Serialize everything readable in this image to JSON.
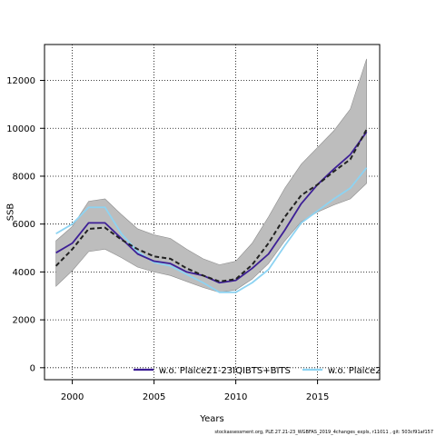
{
  "chart_data": {
    "type": "line",
    "title": "",
    "xlabel": "Years",
    "ylabel": "SSB",
    "xlim": [
      1998.3,
      2018.8
    ],
    "ylim": [
      -500,
      13500
    ],
    "xticks": [
      2000,
      2005,
      2010,
      2015
    ],
    "yticks": [
      0,
      2000,
      4000,
      6000,
      8000,
      10000,
      12000
    ],
    "grid": "dotted",
    "legend_position": "bottom",
    "x": [
      1999,
      2000,
      2001,
      2002,
      2003,
      2004,
      2005,
      2006,
      2007,
      2008,
      2009,
      2010,
      2011,
      2012,
      2013,
      2014,
      2015,
      2016,
      2017,
      2018
    ],
    "band": {
      "upper": [
        5300,
        5900,
        6950,
        7050,
        6400,
        5800,
        5550,
        5400,
        4950,
        4550,
        4300,
        4450,
        5200,
        6300,
        7500,
        8500,
        9200,
        9900,
        10800,
        12900
      ],
      "lower": [
        3400,
        4050,
        4850,
        4950,
        4600,
        4200,
        4000,
        3850,
        3600,
        3350,
        3150,
        3250,
        3700,
        4350,
        5300,
        6100,
        6500,
        6800,
        7050,
        7700
      ]
    },
    "series": [
      {
        "name": "",
        "color": "#222222",
        "style": "dashed",
        "values": [
          4250,
          4950,
          5800,
          5850,
          5350,
          4950,
          4650,
          4550,
          4150,
          3850,
          3600,
          3700,
          4300,
          5200,
          6300,
          7200,
          7650,
          8200,
          8700,
          9950
        ]
      },
      {
        "name": "w.o. Plaice21-23IQIBTS+BITS",
        "color": "#3d1f96",
        "style": "solid",
        "values": [
          4800,
          5200,
          6050,
          6050,
          5400,
          4750,
          4450,
          4350,
          4000,
          3850,
          3550,
          3650,
          4150,
          4750,
          5750,
          6850,
          7650,
          8300,
          8900,
          9850
        ]
      },
      {
        "name": "w.o. Plaice2",
        "color": "#8dd3f2",
        "style": "solid",
        "values": [
          5600,
          6000,
          6700,
          6700,
          5600,
          4850,
          4400,
          4250,
          3900,
          3550,
          3150,
          3150,
          3550,
          4100,
          5100,
          6050,
          6550,
          7050,
          7500,
          8350
        ]
      }
    ]
  },
  "footer": "stockassessment.org, PLE.27.21-23_WGBFAS_2019_4changes_expls, r11011 , git: 503cf91af157"
}
